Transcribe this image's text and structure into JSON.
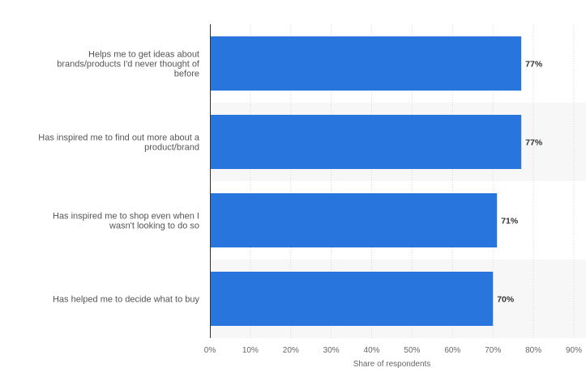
{
  "chart_data": {
    "type": "bar",
    "orientation": "horizontal",
    "categories": [
      [
        "Helps me to get ideas about",
        "brands/products I'd never thought of",
        "before"
      ],
      [
        "Has inspired me to find out more about a",
        "product/brand"
      ],
      [
        "Has inspired me to shop even when I",
        "wasn't looking to do so"
      ],
      [
        "Has helped me to decide what to buy"
      ]
    ],
    "values": [
      77,
      77,
      71,
      70
    ],
    "data_labels": [
      "77%",
      "77%",
      "71%",
      "70%"
    ],
    "xlim": [
      0,
      90
    ],
    "x_ticks": [
      0,
      10,
      20,
      30,
      40,
      50,
      60,
      70,
      80,
      90
    ],
    "x_tick_labels": [
      "0%",
      "10%",
      "20%",
      "30%",
      "40%",
      "50%",
      "60%",
      "70%",
      "80%",
      "90%"
    ],
    "xlabel": "Share of respondents",
    "ylabel": "",
    "title": "",
    "grid": true,
    "bar_color": "#2876dd",
    "alternating_band_color": "#f7f7f7"
  }
}
